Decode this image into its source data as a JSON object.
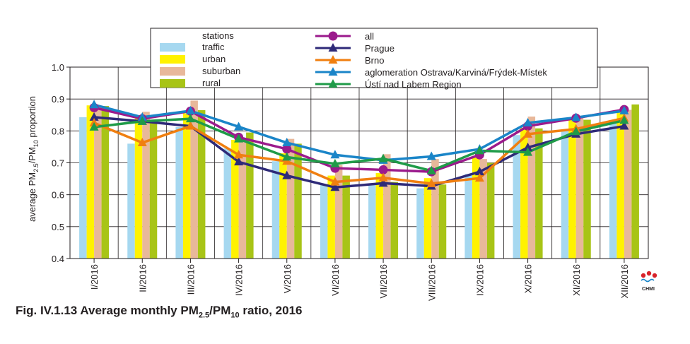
{
  "figure": {
    "caption_prefix": "Fig. IV.1.13  Average monthly PM",
    "caption_sub1": "2.5",
    "caption_mid": "/PM",
    "caption_sub2": "10",
    "caption_suffix": " ratio, 2016",
    "logo_text": "CHMI"
  },
  "chart_data": {
    "type": "bar",
    "categories": [
      "I/2016",
      "II/2016",
      "III/2016",
      "IV/2016",
      "V/2016",
      "VI/2016",
      "VII/2016",
      "VIII/2016",
      "IX/2016",
      "X/2016",
      "XI/2016",
      "XII/2016"
    ],
    "ylim": [
      0.4,
      1.0
    ],
    "yticks": [
      "0.4",
      "0.5",
      "0.6",
      "0.7",
      "0.8",
      "0.9",
      "1.0"
    ],
    "ylabel": {
      "p1": "average PM",
      "s1": "2.5",
      "p2": "/PM",
      "s2": "10",
      "p3": " proportion"
    },
    "grid": true,
    "legend_position": "top",
    "bar_legend_header": "stations",
    "bar_series": [
      {
        "name": "traffic",
        "color": "#a6d8f0",
        "values": [
          0.843,
          0.76,
          0.812,
          0.745,
          0.705,
          0.632,
          0.63,
          0.62,
          0.665,
          0.787,
          0.8,
          0.83
        ]
      },
      {
        "name": "urban",
        "color": "#fff200",
        "values": [
          0.88,
          0.84,
          0.855,
          0.772,
          0.73,
          0.66,
          0.668,
          0.652,
          0.718,
          0.81,
          0.84,
          0.86
        ]
      },
      {
        "name": "suburban",
        "color": "#e8b89a",
        "values": [
          0.878,
          0.86,
          0.895,
          0.778,
          0.775,
          0.693,
          0.727,
          0.712,
          0.712,
          0.845,
          0.846,
          0.866
        ]
      },
      {
        "name": "rural",
        "color": "#a8c416",
        "values": [
          0.878,
          0.835,
          0.865,
          0.795,
          0.76,
          0.66,
          0.64,
          0.632,
          0.7,
          0.808,
          0.835,
          0.883
        ]
      }
    ],
    "line_series": [
      {
        "name": "all",
        "color": "#9b1a8c",
        "marker": "circle",
        "values": [
          0.873,
          0.838,
          0.862,
          0.78,
          0.743,
          0.683,
          0.678,
          0.672,
          0.725,
          0.815,
          0.84,
          0.867
        ]
      },
      {
        "name": "Prague",
        "color": "#2e2a78",
        "marker": "triangle",
        "values": [
          0.843,
          0.83,
          0.815,
          0.703,
          0.66,
          0.623,
          0.636,
          0.627,
          0.672,
          0.748,
          0.79,
          0.815
        ]
      },
      {
        "name": "Brno",
        "color": "#f07f10",
        "marker": "triangle",
        "values": [
          0.825,
          0.763,
          0.815,
          0.725,
          0.705,
          0.64,
          0.653,
          0.635,
          0.652,
          0.79,
          0.806,
          0.84
        ]
      },
      {
        "name": "aglomeration Ostrava/Karviná/Frýdek-Místek",
        "color": "#1a85c8",
        "marker": "triangle",
        "values": [
          0.882,
          0.843,
          0.863,
          0.813,
          0.763,
          0.725,
          0.708,
          0.72,
          0.743,
          0.825,
          0.842,
          0.863
        ]
      },
      {
        "name": "Ústí nad Labem Region",
        "color": "#1f9b48",
        "marker": "triangle",
        "values": [
          0.812,
          0.83,
          0.838,
          0.775,
          0.718,
          0.697,
          0.713,
          0.675,
          0.738,
          0.733,
          0.798,
          0.833
        ]
      }
    ]
  }
}
